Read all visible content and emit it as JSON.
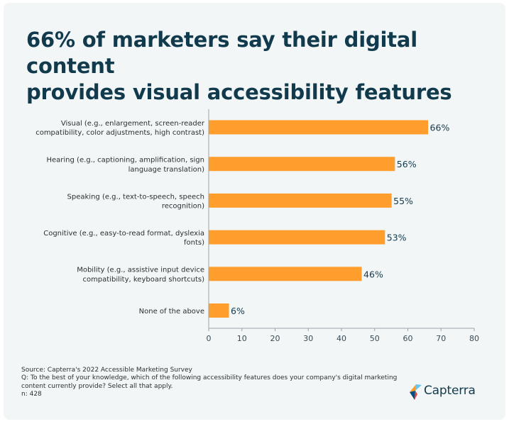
{
  "title_lines": [
    "66% of marketers say their digital content",
    "provides visual accessibility features"
  ],
  "chart_data": {
    "type": "bar",
    "orientation": "horizontal",
    "categories": [
      [
        "Visual (e.g., enlargement, screen-reader",
        "compatibility, color adjustments, high contrast)"
      ],
      [
        "Hearing (e.g., captioning, amplification, sign",
        "language translation)"
      ],
      [
        "Speaking (e.g., text-to-speech, speech",
        "recognition)"
      ],
      [
        "Cognitive (e.g., easy-to-read format, dyslexia",
        "fonts)"
      ],
      [
        "Mobility (e.g., assistive input device",
        "compatibility, keyboard shortcuts)"
      ],
      [
        "None of the above"
      ]
    ],
    "values": [
      66,
      56,
      55,
      53,
      46,
      6
    ],
    "data_labels": [
      "66%",
      "56%",
      "55%",
      "53%",
      "46%",
      "6%"
    ],
    "xlim": [
      0,
      80
    ],
    "xticks": [
      0,
      10,
      20,
      30,
      40,
      50,
      60,
      70,
      80
    ],
    "grid": false,
    "bar_color": "#ff9e2c",
    "axis_color": "#9aa3a8"
  },
  "footer": {
    "source": "Source: Capterra's 2022 Accessible Marketing Survey",
    "question_lines": [
      "Q: To the best of your knowledge, which of the following accessibility features does your company's digital marketing",
      "content currently provide? Select all that apply."
    ],
    "n": "n: 428"
  },
  "logo": {
    "text": "Capterra",
    "icon": "capterra-arrow-icon",
    "colors": [
      "#ff9d28",
      "#68c5ed",
      "#044d80",
      "#e54747"
    ]
  },
  "colors": {
    "background": "#f2f6f7",
    "title": "#123a4d",
    "text": "#2a2f33"
  }
}
